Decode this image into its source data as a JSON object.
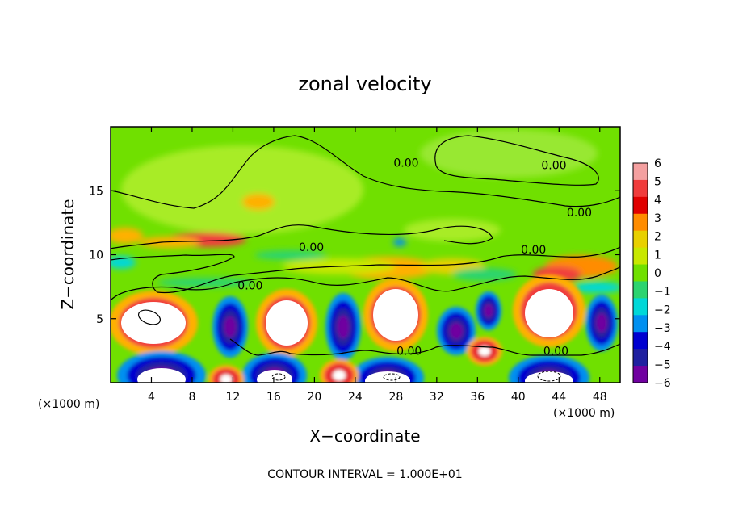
{
  "chart_data": {
    "type": "heatmap",
    "title": "zonal velocity",
    "xlabel": "X−coordinate",
    "ylabel": "Z−coordinate",
    "x_unit_left": "(×1000 m)",
    "x_unit_right": "(×1000 m)",
    "xlim": [
      0,
      50
    ],
    "ylim": [
      0,
      20
    ],
    "x_ticks": [
      4,
      8,
      12,
      16,
      20,
      24,
      28,
      32,
      36,
      40,
      44,
      48
    ],
    "y_ticks": [
      5,
      10,
      15
    ],
    "colorbar": {
      "labels": [
        "6",
        "5",
        "4",
        "3",
        "2",
        "1",
        "0",
        "−1",
        "−2",
        "−3",
        "−4",
        "−5",
        "−6"
      ],
      "colors": [
        "#f4a0a0",
        "#f03c3c",
        "#e00000",
        "#ff8c00",
        "#e8d000",
        "#c8e800",
        "#70e000",
        "#2cd470",
        "#00d8d8",
        "#0090f0",
        "#0000d0",
        "#2020a0",
        "#7000a0"
      ]
    },
    "contour_level_labels": [
      {
        "text": "0.00",
        "x": 29,
        "y": 17.2
      },
      {
        "text": "0.00",
        "x": 43.5,
        "y": 17.0
      },
      {
        "text": "0.00",
        "x": 46.0,
        "y": 13.3
      },
      {
        "text": "0.00",
        "x": 41.5,
        "y": 10.4
      },
      {
        "text": "0.00",
        "x": 19.7,
        "y": 10.6
      },
      {
        "text": "0.00",
        "x": 13.7,
        "y": 7.6
      },
      {
        "text": "0.00",
        "x": 29.3,
        "y": 2.5
      },
      {
        "text": "0.00",
        "x": 43.7,
        "y": 2.5
      }
    ],
    "contour_interval_text": "CONTOUR INTERVAL = 1.000E+01",
    "grid": false,
    "legend_placement": "right"
  }
}
